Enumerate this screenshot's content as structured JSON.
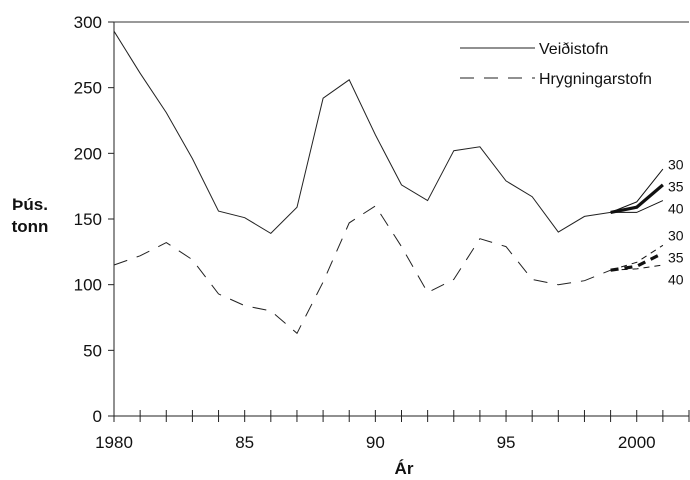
{
  "chart_data": {
    "type": "line",
    "xlabel": "Ár",
    "ylabel": [
      "Þús.",
      "tonn"
    ],
    "xlim": [
      1980,
      2002
    ],
    "ylim": [
      0,
      300
    ],
    "x_ticks": [
      1980,
      1985,
      1990,
      1995,
      2000
    ],
    "x_tick_labels": [
      "1980",
      "85",
      "90",
      "95",
      "2000"
    ],
    "y_ticks": [
      0,
      50,
      100,
      150,
      200,
      250,
      300
    ],
    "grid": false,
    "legend_position": "top-right",
    "series": [
      {
        "name": "Veiðistofn",
        "style": "solid",
        "x": [
          1980,
          1981,
          1982,
          1983,
          1984,
          1985,
          1986,
          1987,
          1988,
          1989,
          1990,
          1991,
          1992,
          1993,
          1994,
          1995,
          1996,
          1997,
          1998,
          1999
        ],
        "values": [
          293,
          261,
          231,
          196,
          156,
          151,
          139,
          159,
          242,
          256,
          214,
          176,
          164,
          202,
          205,
          179,
          167,
          140,
          152,
          155
        ]
      },
      {
        "name": "Hrygningarstofn",
        "style": "dashed",
        "x": [
          1980,
          1981,
          1982,
          1983,
          1984,
          1985,
          1986,
          1987,
          1988,
          1989,
          1990,
          1991,
          1992,
          1993,
          1994,
          1995,
          1996,
          1997,
          1998,
          1999
        ],
        "values": [
          115,
          122,
          132,
          119,
          93,
          84,
          80,
          63,
          102,
          147,
          160,
          129,
          94,
          104,
          135,
          129,
          104,
          100,
          103,
          111
        ]
      }
    ],
    "projections": [
      {
        "series": "Veiðistofn",
        "label": "30",
        "style": "thin",
        "x": [
          1999,
          2000,
          2001
        ],
        "values": [
          155,
          163,
          188
        ]
      },
      {
        "series": "Veiðistofn",
        "label": "35",
        "style": "bold",
        "x": [
          1999,
          2000,
          2001
        ],
        "values": [
          155,
          159,
          176
        ]
      },
      {
        "series": "Veiðistofn",
        "label": "40",
        "style": "thin",
        "x": [
          1999,
          2000,
          2001
        ],
        "values": [
          155,
          155,
          164
        ]
      },
      {
        "series": "Hrygningarstofn",
        "label": "30",
        "style": "thin-dashed",
        "x": [
          1999,
          2000,
          2001
        ],
        "values": [
          111,
          117,
          130
        ]
      },
      {
        "series": "Hrygningarstofn",
        "label": "35",
        "style": "bold-dashed",
        "x": [
          1999,
          2000,
          2001
        ],
        "values": [
          111,
          114,
          124
        ]
      },
      {
        "series": "Hrygningarstofn",
        "label": "40",
        "style": "thin-dashed",
        "x": [
          1999,
          2000,
          2001
        ],
        "values": [
          111,
          112,
          115
        ]
      }
    ]
  }
}
